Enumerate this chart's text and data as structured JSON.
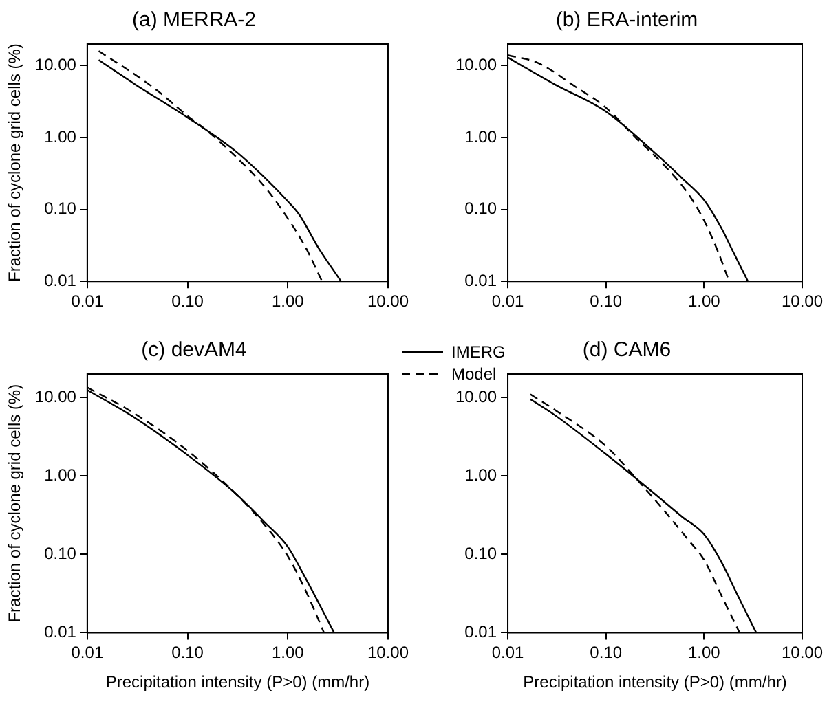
{
  "chart_data": [
    {
      "type": "line",
      "title": "(a) MERRA-2",
      "ylabel": "Fraction of cyclone grid cells (%)",
      "log": "xy",
      "grid": false,
      "marker": "none",
      "legend": false,
      "xlim": [
        0.01,
        10
      ],
      "ylim": [
        0.01,
        20
      ],
      "xticks": [
        {
          "value": 0.01,
          "label": "0.01"
        },
        {
          "value": 0.1,
          "label": "0.10"
        },
        {
          "value": 1,
          "label": "1.00"
        },
        {
          "value": 10,
          "label": "10.00"
        }
      ],
      "yticks": [
        {
          "value": 0.01,
          "label": "0.01"
        },
        {
          "value": 0.1,
          "label": "0.10"
        },
        {
          "value": 1,
          "label": "1.00"
        },
        {
          "value": 10,
          "label": "10.00"
        }
      ],
      "series": [
        {
          "color": "#000000",
          "line_style": "solid",
          "x": [
            0.013,
            0.03,
            0.1,
            0.3,
            0.6,
            1,
            1.3,
            2,
            3.4
          ],
          "values": [
            12,
            5.5,
            1.9,
            0.65,
            0.27,
            0.13,
            0.085,
            0.03,
            0.01
          ]
        },
        {
          "color": "#000000",
          "line_style": "dashed",
          "x": [
            0.013,
            0.03,
            0.05,
            0.1,
            0.15,
            0.3,
            0.6,
            1,
            1.5,
            2.2
          ],
          "values": [
            16,
            7.5,
            4.5,
            2,
            1.3,
            0.55,
            0.2,
            0.075,
            0.03,
            0.01
          ]
        }
      ]
    },
    {
      "type": "line",
      "title": "(b) ERA-interim",
      "log": "xy",
      "grid": false,
      "marker": "none",
      "legend": false,
      "xlim": [
        0.01,
        10
      ],
      "ylim": [
        0.01,
        20
      ],
      "xticks": [
        {
          "value": 0.01,
          "label": "0.01"
        },
        {
          "value": 0.1,
          "label": "0.10"
        },
        {
          "value": 1,
          "label": "1.00"
        },
        {
          "value": 10,
          "label": "10.00"
        }
      ],
      "yticks": [
        {
          "value": 0.01,
          "label": "0.01"
        },
        {
          "value": 0.1,
          "label": "0.10"
        },
        {
          "value": 1,
          "label": "1.00"
        },
        {
          "value": 10,
          "label": "10.00"
        }
      ],
      "series": [
        {
          "color": "#000000",
          "line_style": "solid",
          "x": [
            0.01,
            0.03,
            0.1,
            0.3,
            0.6,
            1,
            1.5,
            2,
            2.8
          ],
          "values": [
            13,
            5.5,
            2.3,
            0.65,
            0.27,
            0.135,
            0.055,
            0.025,
            0.01
          ]
        },
        {
          "color": "#000000",
          "line_style": "dashed",
          "x": [
            0.01,
            0.02,
            0.05,
            0.1,
            0.2,
            0.4,
            0.7,
            1,
            1.4,
            1.8
          ],
          "values": [
            14,
            11,
            5,
            2.6,
            1,
            0.4,
            0.16,
            0.07,
            0.025,
            0.01
          ]
        }
      ]
    },
    {
      "type": "line",
      "title": "(c) devAM4",
      "xlabel": "Precipitation intensity (P>0) (mm/hr)",
      "ylabel": "Fraction of cyclone grid cells (%)",
      "log": "xy",
      "grid": false,
      "marker": "none",
      "legend": "top right",
      "xlim": [
        0.01,
        10
      ],
      "ylim": [
        0.01,
        20
      ],
      "xticks": [
        {
          "value": 0.01,
          "label": "0.01"
        },
        {
          "value": 0.1,
          "label": "0.10"
        },
        {
          "value": 1,
          "label": "1.00"
        },
        {
          "value": 10,
          "label": "10.00"
        }
      ],
      "yticks": [
        {
          "value": 0.01,
          "label": "0.01"
        },
        {
          "value": 0.1,
          "label": "0.10"
        },
        {
          "value": 1,
          "label": "1.00"
        },
        {
          "value": 10,
          "label": "10.00"
        }
      ],
      "series": [
        {
          "name": "IMERG",
          "color": "#000000",
          "line_style": "solid",
          "x": [
            0.01,
            0.03,
            0.1,
            0.3,
            0.6,
            1,
            1.5,
            2,
            2.9
          ],
          "values": [
            12.5,
            5.5,
            1.85,
            0.6,
            0.25,
            0.125,
            0.05,
            0.025,
            0.01
          ]
        },
        {
          "name": "Model",
          "color": "#000000",
          "line_style": "dashed",
          "x": [
            0.01,
            0.03,
            0.1,
            0.3,
            0.6,
            1,
            1.5,
            2.3
          ],
          "values": [
            13.5,
            6.2,
            2.1,
            0.6,
            0.23,
            0.095,
            0.035,
            0.01
          ]
        }
      ]
    },
    {
      "type": "line",
      "title": "(d) CAM6",
      "xlabel": "Precipitation intensity (P>0) (mm/hr)",
      "log": "xy",
      "grid": false,
      "marker": "none",
      "legend": false,
      "xlim": [
        0.01,
        10
      ],
      "ylim": [
        0.01,
        20
      ],
      "xticks": [
        {
          "value": 0.01,
          "label": "0.01"
        },
        {
          "value": 0.1,
          "label": "0.10"
        },
        {
          "value": 1,
          "label": "1.00"
        },
        {
          "value": 10,
          "label": "10.00"
        }
      ],
      "yticks": [
        {
          "value": 0.01,
          "label": "0.01"
        },
        {
          "value": 0.1,
          "label": "0.10"
        },
        {
          "value": 1,
          "label": "1.00"
        },
        {
          "value": 10,
          "label": "10.00"
        }
      ],
      "series": [
        {
          "color": "#000000",
          "line_style": "solid",
          "x": [
            0.017,
            0.03,
            0.1,
            0.3,
            0.6,
            1,
            1.5,
            2.2,
            3.4
          ],
          "values": [
            9.5,
            6,
            1.9,
            0.62,
            0.3,
            0.18,
            0.08,
            0.03,
            0.01
          ]
        },
        {
          "color": "#000000",
          "line_style": "dashed",
          "x": [
            0.017,
            0.03,
            0.1,
            0.2,
            0.4,
            0.7,
            1,
            1.5,
            2.3
          ],
          "values": [
            11,
            7,
            2.4,
            0.95,
            0.35,
            0.15,
            0.085,
            0.03,
            0.01
          ]
        }
      ]
    }
  ]
}
